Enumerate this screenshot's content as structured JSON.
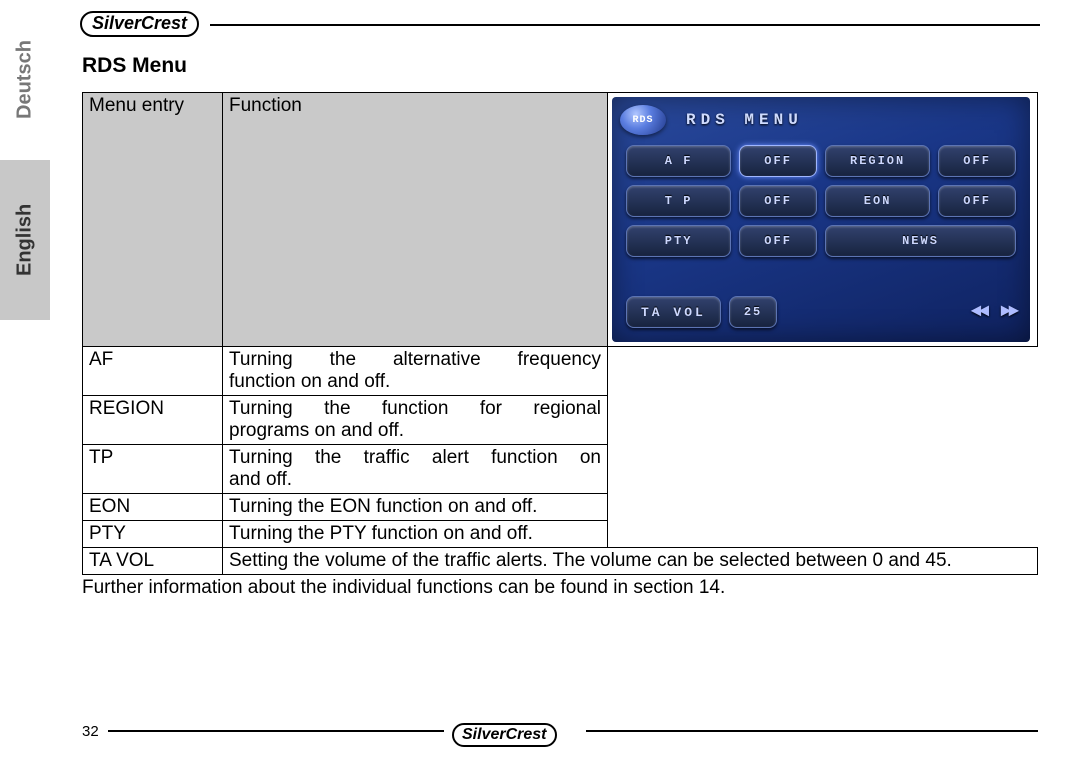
{
  "brand": "SilverCrest",
  "languages": {
    "inactive": "Deutsch",
    "active": "English"
  },
  "section_title": "RDS Menu",
  "table": {
    "headers": {
      "col1": "Menu entry",
      "col2": "Function"
    },
    "rows": [
      {
        "entry": "AF",
        "func_lines": [
          "Turning the alternative frequency",
          "function on and off."
        ]
      },
      {
        "entry": "REGION",
        "func_lines": [
          "Turning the function for regional",
          "programs on and off."
        ]
      },
      {
        "entry": "TP",
        "func_lines": [
          "Turning the traffic alert function on",
          "and off."
        ]
      },
      {
        "entry": "EON",
        "func_lines": [
          "Turning the EON function on and off."
        ]
      },
      {
        "entry": "PTY",
        "func_lines": [
          "Turning the PTY function on and off."
        ]
      }
    ],
    "last_row": {
      "entry": "TA VOL",
      "func": "Setting the volume of the traffic alerts. The volume can be selected between 0 and 45."
    }
  },
  "footnote": "Further information about the individual functions can be found in section 14.",
  "page_number": "32",
  "screen": {
    "badge": "RDS",
    "title": "RDS MENU",
    "rows": [
      [
        {
          "t": "A F",
          "hl": false
        },
        {
          "t": "OFF",
          "hl": true
        },
        {
          "t": "REGION",
          "hl": false
        },
        {
          "t": "OFF",
          "hl": false
        }
      ],
      [
        {
          "t": "T P",
          "hl": false
        },
        {
          "t": "OFF",
          "hl": false
        },
        {
          "t": "EON",
          "hl": false
        },
        {
          "t": "OFF",
          "hl": false
        }
      ],
      [
        {
          "t": "PTY",
          "hl": false
        },
        {
          "t": "OFF",
          "hl": false
        },
        {
          "t": "NEWS",
          "hl": false
        }
      ]
    ],
    "bottom": {
      "label": "TA VOL",
      "value": "25",
      "left_arrow": "◄◄",
      "right_arrow": "►►"
    }
  },
  "colors": {
    "header_bg": "#c9c9c9",
    "tab_active_bg": "#c8c8c8",
    "screen_grad_a": "#2a4a9c",
    "screen_grad_b": "#0f2260",
    "btn_border": "#5c74b4"
  }
}
